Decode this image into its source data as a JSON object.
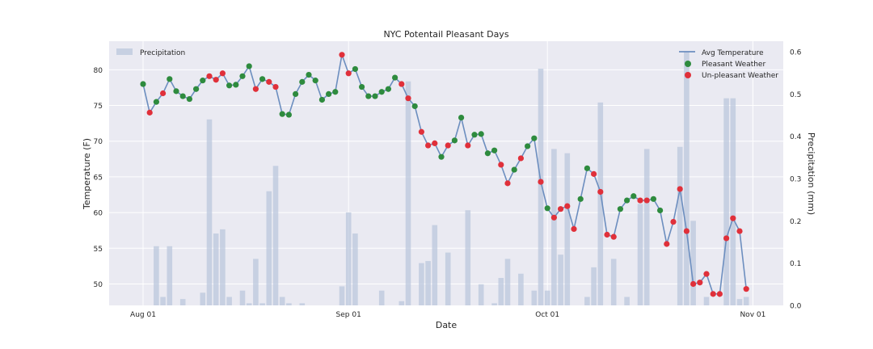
{
  "chart_data": {
    "type": "line",
    "title": "NYC Potentail Pleasant Days",
    "xlabel": "Date",
    "ylabel": "Temperature (F)",
    "y2label": "Precipitation (mm)",
    "x_ticks": [
      "Aug 01",
      "Sep 01",
      "Oct 01",
      "Nov 01"
    ],
    "ylim": [
      47,
      84
    ],
    "y_ticks": [
      50,
      55,
      60,
      65,
      70,
      75,
      80
    ],
    "y2lim": [
      0,
      0.625
    ],
    "y2_ticks": [
      "0.0",
      "0.1",
      "0.2",
      "0.3",
      "0.4",
      "0.5",
      "0.6"
    ],
    "grid": true,
    "legend_left": {
      "precip": "Precipitation"
    },
    "legend_right": {
      "avg": "Avg Temperature",
      "pleasant": "Pleasant Weather",
      "unpleasant": "Un-pleasant Weather"
    },
    "colors": {
      "line": "#6c8ebf",
      "pleasant": "#2e8b3e",
      "unpleasant": "#e0303a",
      "bar": "#b8c4db",
      "bg": "#eaeaf2"
    },
    "dates": [
      "2017-08-01",
      "2017-08-02",
      "2017-08-03",
      "2017-08-04",
      "2017-08-05",
      "2017-08-06",
      "2017-08-07",
      "2017-08-08",
      "2017-08-09",
      "2017-08-10",
      "2017-08-11",
      "2017-08-12",
      "2017-08-13",
      "2017-08-14",
      "2017-08-15",
      "2017-08-16",
      "2017-08-17",
      "2017-08-18",
      "2017-08-19",
      "2017-08-20",
      "2017-08-21",
      "2017-08-22",
      "2017-08-23",
      "2017-08-24",
      "2017-08-25",
      "2017-08-26",
      "2017-08-27",
      "2017-08-28",
      "2017-08-29",
      "2017-08-30",
      "2017-08-31",
      "2017-09-01",
      "2017-09-02",
      "2017-09-03",
      "2017-09-04",
      "2017-09-05",
      "2017-09-06",
      "2017-09-07",
      "2017-09-08",
      "2017-09-09",
      "2017-09-10",
      "2017-09-11",
      "2017-09-12",
      "2017-09-13",
      "2017-09-14",
      "2017-09-15",
      "2017-09-16",
      "2017-09-17",
      "2017-09-18",
      "2017-09-19",
      "2017-09-20",
      "2017-09-21",
      "2017-09-22",
      "2017-09-23",
      "2017-09-24",
      "2017-09-25",
      "2017-09-26",
      "2017-09-27",
      "2017-09-28",
      "2017-09-29",
      "2017-09-30",
      "2017-10-01",
      "2017-10-02",
      "2017-10-03",
      "2017-10-04",
      "2017-10-05",
      "2017-10-06",
      "2017-10-07",
      "2017-10-08",
      "2017-10-09",
      "2017-10-10",
      "2017-10-11",
      "2017-10-12",
      "2017-10-13",
      "2017-10-14",
      "2017-10-15",
      "2017-10-16",
      "2017-10-17",
      "2017-10-18",
      "2017-10-19",
      "2017-10-20",
      "2017-10-21",
      "2017-10-22",
      "2017-10-23",
      "2017-10-24",
      "2017-10-25",
      "2017-10-26",
      "2017-10-27",
      "2017-10-28",
      "2017-10-29",
      "2017-10-30",
      "2017-10-31",
      "2017-11-01"
    ],
    "avg_temperature": [
      78.0,
      74.0,
      75.5,
      76.7,
      78.7,
      77.0,
      76.3,
      75.9,
      77.3,
      78.5,
      79.1,
      78.6,
      79.5,
      77.8,
      77.9,
      79.1,
      80.5,
      77.3,
      78.7,
      78.3,
      77.6,
      73.8,
      73.7,
      76.6,
      78.3,
      79.3,
      78.5,
      75.8,
      76.6,
      76.9,
      82.1,
      79.5,
      80.1,
      77.6,
      76.3,
      76.3,
      76.9,
      77.3,
      78.9,
      78.0,
      76.0,
      74.9,
      71.3,
      69.4,
      69.7,
      67.8,
      69.4,
      70.1,
      73.3,
      69.4,
      70.9,
      71.0,
      68.3,
      68.7,
      66.7,
      64.1,
      66.0,
      67.6,
      69.3,
      70.4,
      64.3,
      60.6,
      59.3,
      60.5,
      60.9,
      57.7,
      61.9,
      66.2,
      65.4,
      62.9,
      56.9,
      56.6,
      60.5,
      61.7,
      62.3,
      61.7,
      61.7,
      61.9,
      60.3,
      55.6,
      58.7,
      63.3,
      57.4,
      50.0,
      50.2,
      51.4,
      48.6,
      48.6,
      56.4,
      59.2,
      57.4,
      49.3,
      null
    ],
    "weather": [
      "P",
      "U",
      "P",
      "U",
      "P",
      "P",
      "P",
      "P",
      "P",
      "P",
      "U",
      "U",
      "U",
      "P",
      "P",
      "P",
      "P",
      "U",
      "P",
      "U",
      "U",
      "P",
      "P",
      "P",
      "P",
      "P",
      "P",
      "P",
      "P",
      "P",
      "U",
      "U",
      "P",
      "P",
      "P",
      "P",
      "P",
      "P",
      "P",
      "U",
      "U",
      "P",
      "U",
      "U",
      "U",
      "P",
      "U",
      "P",
      "P",
      "U",
      "P",
      "P",
      "P",
      "P",
      "U",
      "U",
      "P",
      "U",
      "P",
      "P",
      "U",
      "P",
      "U",
      "U",
      "U",
      "U",
      "P",
      "P",
      "U",
      "U",
      "U",
      "U",
      "P",
      "P",
      "P",
      "U",
      "U",
      "P",
      "P",
      "U",
      "U",
      "U",
      "U",
      "U",
      "U",
      "U",
      "U",
      "U",
      "U",
      "U",
      "U",
      "U",
      null
    ],
    "precipitation_mm": [
      0,
      0,
      0.14,
      0.02,
      0.14,
      0,
      0.015,
      0,
      0,
      0.03,
      0.44,
      0.17,
      0.18,
      0.02,
      0,
      0.035,
      0.005,
      0.11,
      0.005,
      0.27,
      0.33,
      0.02,
      0.005,
      0,
      0.005,
      0,
      0,
      0,
      0,
      0,
      0.045,
      0.22,
      0.17,
      0,
      0,
      0,
      0.035,
      0,
      0,
      0.01,
      0.53,
      0,
      0.1,
      0.105,
      0.19,
      0,
      0.125,
      0,
      0,
      0.225,
      0,
      0.05,
      0,
      0.005,
      0.065,
      0.11,
      0,
      0.075,
      0,
      0.035,
      0.56,
      0.035,
      0.37,
      0.12,
      0.36,
      0,
      0,
      0.02,
      0.09,
      0.48,
      0,
      0.11,
      0,
      0.02,
      0,
      0.24,
      0.37,
      0,
      0,
      0,
      0,
      0.375,
      0.6,
      0.2,
      0,
      0.02,
      0,
      0,
      0.49,
      0.49,
      0.015,
      0.02,
      0
    ]
  }
}
